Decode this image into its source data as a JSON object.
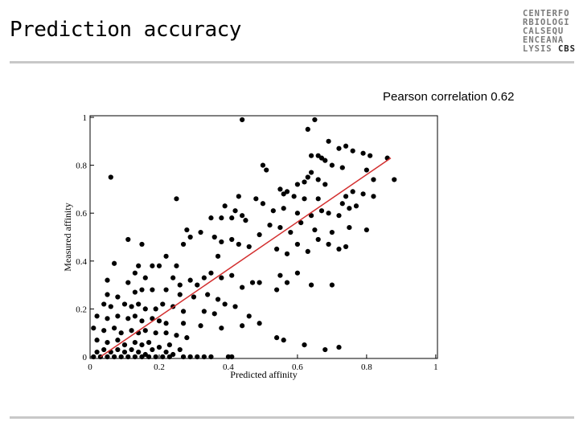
{
  "slide": {
    "title": "Prediction accuracy",
    "subtitle": "Pearson correlation 0.62",
    "logo_lines": [
      "CENTERFO",
      "RBIOLOGI",
      "CALSEQU",
      "ENCEANA",
      "LYSIS "
    ],
    "logo_brand": "CBS"
  },
  "chart_data": {
    "type": "scatter",
    "xlabel": "Predicted affinity",
    "ylabel": "Measured affinity",
    "xlim": [
      0,
      1
    ],
    "ylim": [
      0,
      1
    ],
    "xticks": [
      "0",
      "0.2",
      "0.4",
      "0.6",
      "0.8",
      "1"
    ],
    "yticks": [
      "0",
      "0.2",
      "0.4",
      "0.6",
      "0.8",
      "1"
    ],
    "point_color": "#000000",
    "line_color": "#d32f2f",
    "fit_line": {
      "x": [
        0.03,
        0.87
      ],
      "y": [
        0.0,
        0.83
      ]
    },
    "points": [
      [
        0.44,
        0.99
      ],
      [
        0.65,
        0.99
      ],
      [
        0.63,
        0.95
      ],
      [
        0.06,
        0.75
      ],
      [
        0.69,
        0.9
      ],
      [
        0.72,
        0.87
      ],
      [
        0.74,
        0.88
      ],
      [
        0.76,
        0.86
      ],
      [
        0.79,
        0.85
      ],
      [
        0.81,
        0.84
      ],
      [
        0.64,
        0.84
      ],
      [
        0.66,
        0.84
      ],
      [
        0.67,
        0.83
      ],
      [
        0.68,
        0.82
      ],
      [
        0.86,
        0.83
      ],
      [
        0.7,
        0.8
      ],
      [
        0.73,
        0.79
      ],
      [
        0.8,
        0.78
      ],
      [
        0.5,
        0.8
      ],
      [
        0.51,
        0.78
      ],
      [
        0.64,
        0.77
      ],
      [
        0.63,
        0.75
      ],
      [
        0.62,
        0.73
      ],
      [
        0.66,
        0.74
      ],
      [
        0.68,
        0.72
      ],
      [
        0.82,
        0.74
      ],
      [
        0.88,
        0.74
      ],
      [
        0.55,
        0.7
      ],
      [
        0.57,
        0.69
      ],
      [
        0.6,
        0.72
      ],
      [
        0.56,
        0.68
      ],
      [
        0.59,
        0.67
      ],
      [
        0.62,
        0.66
      ],
      [
        0.66,
        0.66
      ],
      [
        0.74,
        0.67
      ],
      [
        0.76,
        0.69
      ],
      [
        0.79,
        0.68
      ],
      [
        0.82,
        0.67
      ],
      [
        0.48,
        0.66
      ],
      [
        0.43,
        0.67
      ],
      [
        0.39,
        0.63
      ],
      [
        0.42,
        0.61
      ],
      [
        0.5,
        0.64
      ],
      [
        0.53,
        0.61
      ],
      [
        0.56,
        0.62
      ],
      [
        0.6,
        0.6
      ],
      [
        0.64,
        0.59
      ],
      [
        0.67,
        0.61
      ],
      [
        0.69,
        0.6
      ],
      [
        0.73,
        0.64
      ],
      [
        0.75,
        0.62
      ],
      [
        0.77,
        0.63
      ],
      [
        0.72,
        0.59
      ],
      [
        0.25,
        0.66
      ],
      [
        0.35,
        0.58
      ],
      [
        0.38,
        0.58
      ],
      [
        0.41,
        0.58
      ],
      [
        0.44,
        0.59
      ],
      [
        0.45,
        0.57
      ],
      [
        0.52,
        0.55
      ],
      [
        0.55,
        0.54
      ],
      [
        0.58,
        0.52
      ],
      [
        0.61,
        0.56
      ],
      [
        0.65,
        0.53
      ],
      [
        0.7,
        0.52
      ],
      [
        0.75,
        0.54
      ],
      [
        0.8,
        0.53
      ],
      [
        0.28,
        0.53
      ],
      [
        0.32,
        0.52
      ],
      [
        0.36,
        0.5
      ],
      [
        0.38,
        0.48
      ],
      [
        0.41,
        0.49
      ],
      [
        0.43,
        0.47
      ],
      [
        0.46,
        0.46
      ],
      [
        0.49,
        0.51
      ],
      [
        0.54,
        0.45
      ],
      [
        0.57,
        0.43
      ],
      [
        0.6,
        0.47
      ],
      [
        0.63,
        0.44
      ],
      [
        0.66,
        0.49
      ],
      [
        0.69,
        0.47
      ],
      [
        0.72,
        0.45
      ],
      [
        0.74,
        0.46
      ],
      [
        0.11,
        0.49
      ],
      [
        0.15,
        0.47
      ],
      [
        0.29,
        0.5
      ],
      [
        0.27,
        0.47
      ],
      [
        0.37,
        0.42
      ],
      [
        0.22,
        0.42
      ],
      [
        0.25,
        0.38
      ],
      [
        0.2,
        0.38
      ],
      [
        0.14,
        0.38
      ],
      [
        0.07,
        0.39
      ],
      [
        0.18,
        0.38
      ],
      [
        0.13,
        0.35
      ],
      [
        0.16,
        0.33
      ],
      [
        0.11,
        0.31
      ],
      [
        0.05,
        0.32
      ],
      [
        0.24,
        0.33
      ],
      [
        0.26,
        0.3
      ],
      [
        0.29,
        0.32
      ],
      [
        0.31,
        0.3
      ],
      [
        0.33,
        0.33
      ],
      [
        0.35,
        0.35
      ],
      [
        0.38,
        0.33
      ],
      [
        0.41,
        0.34
      ],
      [
        0.44,
        0.29
      ],
      [
        0.47,
        0.31
      ],
      [
        0.49,
        0.31
      ],
      [
        0.54,
        0.28
      ],
      [
        0.55,
        0.34
      ],
      [
        0.57,
        0.31
      ],
      [
        0.6,
        0.35
      ],
      [
        0.64,
        0.3
      ],
      [
        0.7,
        0.3
      ],
      [
        0.05,
        0.26
      ],
      [
        0.08,
        0.25
      ],
      [
        0.13,
        0.27
      ],
      [
        0.15,
        0.28
      ],
      [
        0.18,
        0.28
      ],
      [
        0.22,
        0.28
      ],
      [
        0.26,
        0.26
      ],
      [
        0.3,
        0.25
      ],
      [
        0.34,
        0.26
      ],
      [
        0.37,
        0.24
      ],
      [
        0.39,
        0.22
      ],
      [
        0.04,
        0.22
      ],
      [
        0.06,
        0.21
      ],
      [
        0.1,
        0.22
      ],
      [
        0.12,
        0.21
      ],
      [
        0.14,
        0.22
      ],
      [
        0.16,
        0.2
      ],
      [
        0.19,
        0.2
      ],
      [
        0.21,
        0.22
      ],
      [
        0.24,
        0.21
      ],
      [
        0.27,
        0.19
      ],
      [
        0.33,
        0.19
      ],
      [
        0.36,
        0.18
      ],
      [
        0.42,
        0.21
      ],
      [
        0.46,
        0.17
      ],
      [
        0.49,
        0.14
      ],
      [
        0.02,
        0.17
      ],
      [
        0.05,
        0.16
      ],
      [
        0.08,
        0.17
      ],
      [
        0.11,
        0.16
      ],
      [
        0.13,
        0.17
      ],
      [
        0.15,
        0.15
      ],
      [
        0.18,
        0.16
      ],
      [
        0.2,
        0.15
      ],
      [
        0.22,
        0.14
      ],
      [
        0.27,
        0.14
      ],
      [
        0.32,
        0.13
      ],
      [
        0.38,
        0.12
      ],
      [
        0.44,
        0.13
      ],
      [
        0.01,
        0.12
      ],
      [
        0.04,
        0.11
      ],
      [
        0.07,
        0.12
      ],
      [
        0.09,
        0.1
      ],
      [
        0.12,
        0.11
      ],
      [
        0.14,
        0.1
      ],
      [
        0.16,
        0.11
      ],
      [
        0.19,
        0.1
      ],
      [
        0.22,
        0.1
      ],
      [
        0.25,
        0.09
      ],
      [
        0.28,
        0.08
      ],
      [
        0.54,
        0.08
      ],
      [
        0.56,
        0.07
      ],
      [
        0.62,
        0.05
      ],
      [
        0.02,
        0.07
      ],
      [
        0.05,
        0.06
      ],
      [
        0.08,
        0.07
      ],
      [
        0.1,
        0.05
      ],
      [
        0.13,
        0.06
      ],
      [
        0.15,
        0.05
      ],
      [
        0.17,
        0.06
      ],
      [
        0.2,
        0.04
      ],
      [
        0.23,
        0.05
      ],
      [
        0.26,
        0.03
      ],
      [
        0.68,
        0.03
      ],
      [
        0.72,
        0.04
      ],
      [
        0.02,
        0.02
      ],
      [
        0.04,
        0.03
      ],
      [
        0.06,
        0.02
      ],
      [
        0.08,
        0.03
      ],
      [
        0.1,
        0.02
      ],
      [
        0.12,
        0.03
      ],
      [
        0.14,
        0.02
      ],
      [
        0.16,
        0.01
      ],
      [
        0.18,
        0.03
      ],
      [
        0.22,
        0.02
      ],
      [
        0.24,
        0.01
      ],
      [
        0.01,
        0.0
      ],
      [
        0.03,
        0.0
      ],
      [
        0.05,
        0.0
      ],
      [
        0.07,
        0.0
      ],
      [
        0.09,
        0.0
      ],
      [
        0.11,
        0.0
      ],
      [
        0.13,
        0.0
      ],
      [
        0.15,
        0.0
      ],
      [
        0.17,
        0.0
      ],
      [
        0.19,
        0.0
      ],
      [
        0.21,
        0.0
      ],
      [
        0.23,
        0.0
      ],
      [
        0.27,
        0.0
      ],
      [
        0.29,
        0.0
      ],
      [
        0.31,
        0.0
      ],
      [
        0.33,
        0.0
      ],
      [
        0.35,
        0.0
      ],
      [
        0.4,
        0.0
      ],
      [
        0.41,
        0.0
      ]
    ]
  }
}
